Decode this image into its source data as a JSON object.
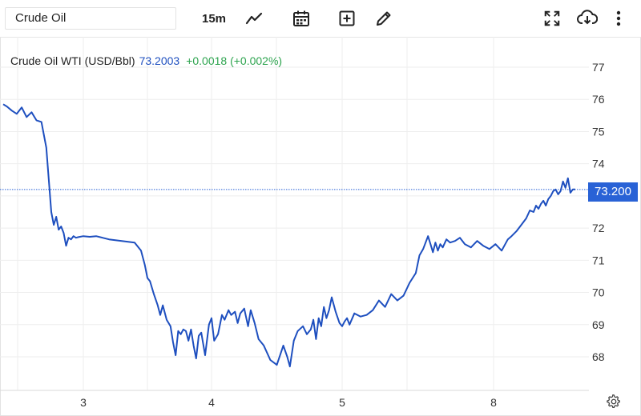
{
  "toolbar": {
    "symbol": "Crude Oil",
    "interval": "15m",
    "icons": [
      "line-chart-icon",
      "calendar-icon",
      "add-indicator-icon",
      "draw-pencil-icon",
      "fullscreen-icon",
      "download-icon",
      "more-vert-icon"
    ]
  },
  "legend": {
    "name": "Crude Oil WTI (USD/Bbl)",
    "price": "73.2003",
    "change": "+0.0018 (+0.002%)"
  },
  "price_tag": "73.200",
  "colors": {
    "line": "#1e4fbf",
    "up": "#2ea44f",
    "tag": "#2962d6",
    "grid": "#eeeeee"
  },
  "chart_data": {
    "type": "line",
    "title": "Crude Oil WTI (USD/Bbl)",
    "xlabel": "",
    "ylabel": "",
    "x_ticks": [
      "3",
      "4",
      "5",
      "8"
    ],
    "y_ticks": [
      68,
      69,
      70,
      71,
      72,
      73,
      74,
      75,
      76,
      77
    ],
    "ylim": [
      67.3,
      77.8
    ],
    "grid": true,
    "current_price_line": 73.2,
    "series": [
      {
        "name": "",
        "x": [
          2.35,
          2.38,
          2.42,
          2.46,
          2.5,
          2.54,
          2.58,
          2.62,
          2.66,
          2.7,
          2.72,
          2.74,
          2.76,
          2.78,
          2.8,
          2.82,
          2.84,
          2.86,
          2.88,
          2.9,
          2.92,
          2.94,
          2.96,
          3.0,
          3.05,
          3.1,
          3.15,
          3.2,
          3.3,
          3.4,
          3.45,
          3.48,
          3.5,
          3.52,
          3.55,
          3.58,
          3.6,
          3.62,
          3.65,
          3.68,
          3.7,
          3.72,
          3.74,
          3.76,
          3.78,
          3.8,
          3.82,
          3.84,
          3.86,
          3.88,
          3.9,
          3.92,
          3.95,
          3.98,
          4.0,
          4.02,
          4.05,
          4.08,
          4.1,
          4.13,
          4.15,
          4.18,
          4.2,
          4.22,
          4.25,
          4.28,
          4.3,
          4.33,
          4.36,
          4.4,
          4.45,
          4.5,
          4.55,
          4.58,
          4.6,
          4.63,
          4.66,
          4.7,
          4.73,
          4.76,
          4.78,
          4.8,
          4.82,
          4.84,
          4.86,
          4.88,
          4.9,
          4.92,
          4.95,
          4.98,
          5.0,
          5.02,
          5.04,
          5.06,
          5.1,
          5.15,
          5.2,
          5.25,
          5.3,
          5.35,
          5.4,
          5.45,
          5.5,
          5.55,
          5.6,
          5.63,
          5.66,
          5.7,
          5.72,
          5.74,
          5.76,
          5.78,
          5.8,
          5.82,
          5.85,
          5.88,
          5.92,
          5.96,
          6.0,
          6.05,
          6.1,
          6.15,
          6.2,
          6.25,
          6.3,
          6.35,
          6.38,
          6.42,
          6.46,
          6.5,
          6.53,
          6.56,
          6.58,
          6.6,
          6.62,
          6.64,
          6.66,
          6.68,
          6.7,
          6.72,
          6.74,
          6.76,
          6.78,
          6.8,
          6.82,
          6.84,
          6.86,
          6.88,
          6.9
        ],
        "y": [
          75.85,
          75.78,
          75.65,
          75.55,
          75.75,
          75.45,
          75.6,
          75.35,
          75.3,
          74.5,
          73.5,
          72.5,
          72.1,
          72.35,
          71.95,
          72.05,
          71.85,
          71.45,
          71.7,
          71.65,
          71.75,
          71.7,
          71.72,
          71.75,
          71.73,
          71.75,
          71.7,
          71.65,
          71.6,
          71.55,
          71.3,
          70.85,
          70.45,
          70.35,
          69.95,
          69.6,
          69.3,
          69.6,
          69.15,
          68.95,
          68.45,
          68.05,
          68.8,
          68.7,
          68.85,
          68.8,
          68.5,
          68.85,
          68.35,
          67.95,
          68.65,
          68.75,
          68.05,
          69.0,
          69.2,
          68.5,
          68.7,
          69.3,
          69.15,
          69.45,
          69.3,
          69.4,
          69.05,
          69.35,
          69.5,
          68.95,
          69.45,
          69.05,
          68.55,
          68.35,
          67.9,
          67.75,
          68.35,
          68.0,
          67.7,
          68.5,
          68.8,
          68.95,
          68.7,
          68.85,
          69.15,
          68.55,
          69.2,
          68.95,
          69.55,
          69.2,
          69.45,
          69.85,
          69.4,
          69.05,
          68.95,
          69.1,
          69.2,
          69.0,
          69.35,
          69.25,
          69.3,
          69.45,
          69.75,
          69.55,
          69.95,
          69.75,
          69.9,
          70.3,
          70.6,
          71.15,
          71.35,
          71.75,
          71.5,
          71.25,
          71.55,
          71.3,
          71.5,
          71.4,
          71.65,
          71.55,
          71.6,
          71.7,
          71.5,
          71.4,
          71.6,
          71.45,
          71.35,
          71.5,
          71.3,
          71.65,
          71.75,
          71.9,
          72.1,
          72.3,
          72.55,
          72.5,
          72.7,
          72.6,
          72.75,
          72.85,
          72.7,
          72.9,
          73.0,
          73.15,
          73.2,
          73.05,
          73.15,
          73.45,
          73.25,
          73.55,
          73.1,
          73.2,
          73.2
        ]
      }
    ]
  }
}
